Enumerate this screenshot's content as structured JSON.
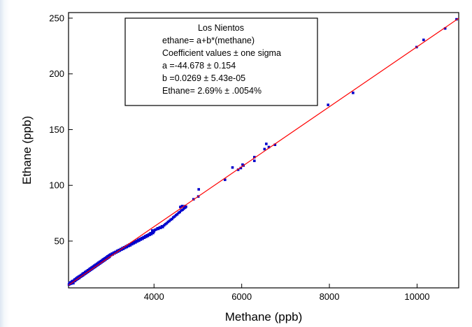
{
  "chart_data": {
    "type": "scatter",
    "xlabel": "Methane (ppb)",
    "ylabel": "Ethane (ppb)",
    "xlim": [
      2050,
      10950
    ],
    "ylim": [
      8,
      255
    ],
    "xticks": [
      4000,
      6000,
      8000,
      10000
    ],
    "yticks": [
      50,
      100,
      150,
      200,
      250
    ],
    "grid": false,
    "annotation": {
      "placement": "top-center",
      "lines": [
        "Los Nientos",
        "ethane= a+b*(methane)",
        "Coefficient values ± one sigma",
        "a =-44.678 ± 0.154",
        "b =0.0269 ± 5.43e-05",
        "Ethane= 2.69% ± .0054%"
      ]
    },
    "fit": {
      "a": -44.678,
      "b": 0.0269,
      "x_range": [
        2050,
        10950
      ],
      "color": "#ff0000"
    },
    "points_color": "#0000cc",
    "points": [
      [
        2060,
        11
      ],
      [
        2070,
        12.5
      ],
      [
        2080,
        11.5
      ],
      [
        2090,
        12
      ],
      [
        2100,
        13
      ],
      [
        2110,
        11.8
      ],
      [
        2120,
        12.5
      ],
      [
        2130,
        14
      ],
      [
        2140,
        13.2
      ],
      [
        2150,
        13.8
      ],
      [
        2160,
        12.2
      ],
      [
        2170,
        14.6
      ],
      [
        2180,
        14.1
      ],
      [
        2190,
        15.5
      ],
      [
        2200,
        14.2
      ],
      [
        2210,
        15.1
      ],
      [
        2220,
        16.4
      ],
      [
        2230,
        15.3
      ],
      [
        2240,
        15.9
      ],
      [
        2250,
        17.3
      ],
      [
        2260,
        16
      ],
      [
        2270,
        16.6
      ],
      [
        2280,
        18
      ],
      [
        2290,
        16.8
      ],
      [
        2300,
        17.2
      ],
      [
        2310,
        18.8
      ],
      [
        2320,
        17.9
      ],
      [
        2330,
        18.2
      ],
      [
        2340,
        19.6
      ],
      [
        2350,
        18.6
      ],
      [
        2360,
        19
      ],
      [
        2370,
        20.6
      ],
      [
        2380,
        19.3
      ],
      [
        2390,
        20
      ],
      [
        2400,
        21.3
      ],
      [
        2410,
        20.2
      ],
      [
        2420,
        20.7
      ],
      [
        2430,
        22.2
      ],
      [
        2440,
        21
      ],
      [
        2450,
        21.5
      ],
      [
        2460,
        22.9
      ],
      [
        2470,
        21.9
      ],
      [
        2480,
        22.3
      ],
      [
        2490,
        23.8
      ],
      [
        2500,
        22.6
      ],
      [
        2510,
        23.3
      ],
      [
        2520,
        24.7
      ],
      [
        2530,
        23.4
      ],
      [
        2540,
        24
      ],
      [
        2550,
        25.5
      ],
      [
        2560,
        24.3
      ],
      [
        2570,
        24.8
      ],
      [
        2580,
        26.3
      ],
      [
        2590,
        25.1
      ],
      [
        2600,
        25.6
      ],
      [
        2610,
        27.2
      ],
      [
        2620,
        25.9
      ],
      [
        2630,
        26.5
      ],
      [
        2640,
        28
      ],
      [
        2650,
        26.7
      ],
      [
        2660,
        27.2
      ],
      [
        2670,
        28.8
      ],
      [
        2680,
        27.6
      ],
      [
        2690,
        28.1
      ],
      [
        2700,
        29.6
      ],
      [
        2710,
        28.4
      ],
      [
        2720,
        28.9
      ],
      [
        2730,
        30.5
      ],
      [
        2740,
        29.2
      ],
      [
        2750,
        29.8
      ],
      [
        2760,
        31.3
      ],
      [
        2770,
        30
      ],
      [
        2780,
        30.6
      ],
      [
        2790,
        32.1
      ],
      [
        2800,
        30.9
      ],
      [
        2810,
        31.3
      ],
      [
        2820,
        33
      ],
      [
        2830,
        31.7
      ],
      [
        2840,
        32.2
      ],
      [
        2850,
        33.8
      ],
      [
        2860,
        32.5
      ],
      [
        2870,
        33
      ],
      [
        2880,
        34.6
      ],
      [
        2890,
        33.3
      ],
      [
        2900,
        33.9
      ],
      [
        2910,
        35.4
      ],
      [
        2920,
        34.2
      ],
      [
        2930,
        34.6
      ],
      [
        2940,
        36.3
      ],
      [
        2950,
        35
      ],
      [
        2960,
        35.4
      ],
      [
        2970,
        37.1
      ],
      [
        2980,
        35.8
      ],
      [
        2990,
        36.3
      ],
      [
        3000,
        37.9
      ],
      [
        3020,
        37.3
      ],
      [
        3040,
        38.7
      ],
      [
        3060,
        38
      ],
      [
        3080,
        39.6
      ],
      [
        3100,
        39
      ],
      [
        3120,
        40.3
      ],
      [
        3140,
        39.8
      ],
      [
        3160,
        41.2
      ],
      [
        3180,
        40.6
      ],
      [
        3200,
        42
      ],
      [
        3220,
        41.4
      ],
      [
        3240,
        42.8
      ],
      [
        3260,
        42.3
      ],
      [
        3280,
        43.7
      ],
      [
        3300,
        43
      ],
      [
        3320,
        44.4
      ],
      [
        3340,
        43.9
      ],
      [
        3360,
        45.3
      ],
      [
        3380,
        44.6
      ],
      [
        3400,
        46.1
      ],
      [
        3420,
        45.5
      ],
      [
        3440,
        46.9
      ],
      [
        3460,
        46.2
      ],
      [
        3480,
        47.8
      ],
      [
        3500,
        47.2
      ],
      [
        3520,
        48.5
      ],
      [
        3540,
        48
      ],
      [
        3560,
        49.4
      ],
      [
        3580,
        48.8
      ],
      [
        3600,
        50.2
      ],
      [
        3620,
        49.7
      ],
      [
        3640,
        51.1
      ],
      [
        3660,
        50.4
      ],
      [
        3680,
        51.9
      ],
      [
        3700,
        51.3
      ],
      [
        3720,
        52.7
      ],
      [
        3740,
        52.1
      ],
      [
        3760,
        53.5
      ],
      [
        3780,
        53
      ],
      [
        3800,
        54.4
      ],
      [
        3820,
        53.8
      ],
      [
        3840,
        55.2
      ],
      [
        3860,
        54.6
      ],
      [
        3880,
        56
      ],
      [
        3900,
        55.5
      ],
      [
        3920,
        57
      ],
      [
        3940,
        56.3
      ],
      [
        3960,
        57.8
      ],
      [
        3980,
        57.2
      ],
      [
        4000,
        58.6
      ],
      [
        3960,
        59.5
      ],
      [
        4020,
        60
      ],
      [
        4050,
        60.4
      ],
      [
        4080,
        61.5
      ],
      [
        4100,
        61
      ],
      [
        4130,
        62.3
      ],
      [
        4150,
        61.8
      ],
      [
        4180,
        63.2
      ],
      [
        4200,
        62.6
      ],
      [
        4230,
        64.1
      ],
      [
        4260,
        65.2
      ],
      [
        4290,
        66
      ],
      [
        4320,
        67.2
      ],
      [
        4350,
        68
      ],
      [
        4380,
        69.1
      ],
      [
        4410,
        69.8
      ],
      [
        4440,
        71.2
      ],
      [
        4470,
        72
      ],
      [
        4500,
        73.2
      ],
      [
        4530,
        74
      ],
      [
        4560,
        75.3
      ],
      [
        4590,
        76
      ],
      [
        4620,
        77.4
      ],
      [
        4650,
        78
      ],
      [
        4680,
        79.1
      ],
      [
        4710,
        80
      ],
      [
        4600,
        80.6
      ],
      [
        4640,
        81.4
      ],
      [
        4700,
        81.3
      ],
      [
        4730,
        80.8
      ],
      [
        4900,
        87.5
      ],
      [
        5020,
        96.4
      ],
      [
        5010,
        90
      ],
      [
        5620,
        105
      ],
      [
        5790,
        116
      ],
      [
        5920,
        114
      ],
      [
        5980,
        115.5
      ],
      [
        6040,
        117.8
      ],
      [
        6020,
        118.6
      ],
      [
        6290,
        122
      ],
      [
        6290,
        125.3
      ],
      [
        6520,
        132.5
      ],
      [
        6560,
        137.2
      ],
      [
        6620,
        134.3
      ],
      [
        6760,
        136.4
      ],
      [
        7970,
        172.2
      ],
      [
        8540,
        183
      ],
      [
        9990,
        224
      ],
      [
        10150,
        230.5
      ],
      [
        10640,
        240.8
      ],
      [
        10900,
        249
      ]
    ]
  }
}
